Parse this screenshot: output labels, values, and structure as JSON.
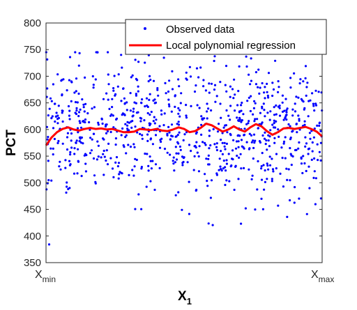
{
  "chart_data": {
    "type": "scatter",
    "ylabel": "PCT",
    "xlabel": {
      "main": "X",
      "sub": "1"
    },
    "xlim": [
      0,
      1
    ],
    "ylim": [
      350,
      800
    ],
    "yticks": [
      350,
      400,
      450,
      500,
      550,
      600,
      650,
      700,
      750,
      800
    ],
    "xtick_labels": [
      {
        "x": 0,
        "main": "X",
        "sub": "min"
      },
      {
        "x": 1,
        "main": "X",
        "sub": "max"
      }
    ],
    "legend_position": "top-right",
    "series": [
      {
        "name": "Observed data",
        "kind": "scatter",
        "color": "#0000ff",
        "n_points": 900,
        "mean": 600,
        "sd": 62
      },
      {
        "name": "Local polynomial regression",
        "kind": "line",
        "color": "#ff0000",
        "x": [
          0.0,
          0.02,
          0.04,
          0.06,
          0.08,
          0.1,
          0.12,
          0.14,
          0.16,
          0.18,
          0.2,
          0.22,
          0.24,
          0.26,
          0.28,
          0.3,
          0.32,
          0.34,
          0.36,
          0.38,
          0.4,
          0.42,
          0.44,
          0.46,
          0.48,
          0.5,
          0.52,
          0.54,
          0.56,
          0.58,
          0.6,
          0.62,
          0.64,
          0.66,
          0.68,
          0.7,
          0.72,
          0.74,
          0.76,
          0.78,
          0.8,
          0.82,
          0.84,
          0.86,
          0.88,
          0.9,
          0.92,
          0.94,
          0.96,
          0.98,
          1.0
        ],
        "y": [
          570,
          585,
          595,
          601,
          604,
          600,
          598,
          601,
          603,
          601,
          602,
          600,
          601,
          598,
          595,
          595,
          596,
          601,
          600,
          599,
          601,
          598,
          597,
          600,
          604,
          601,
          595,
          597,
          603,
          611,
          608,
          602,
          596,
          600,
          606,
          600,
          596,
          604,
          610,
          606,
          597,
          590,
          595,
          602,
          603,
          601,
          603,
          605,
          601,
          596,
          587
        ]
      }
    ]
  }
}
